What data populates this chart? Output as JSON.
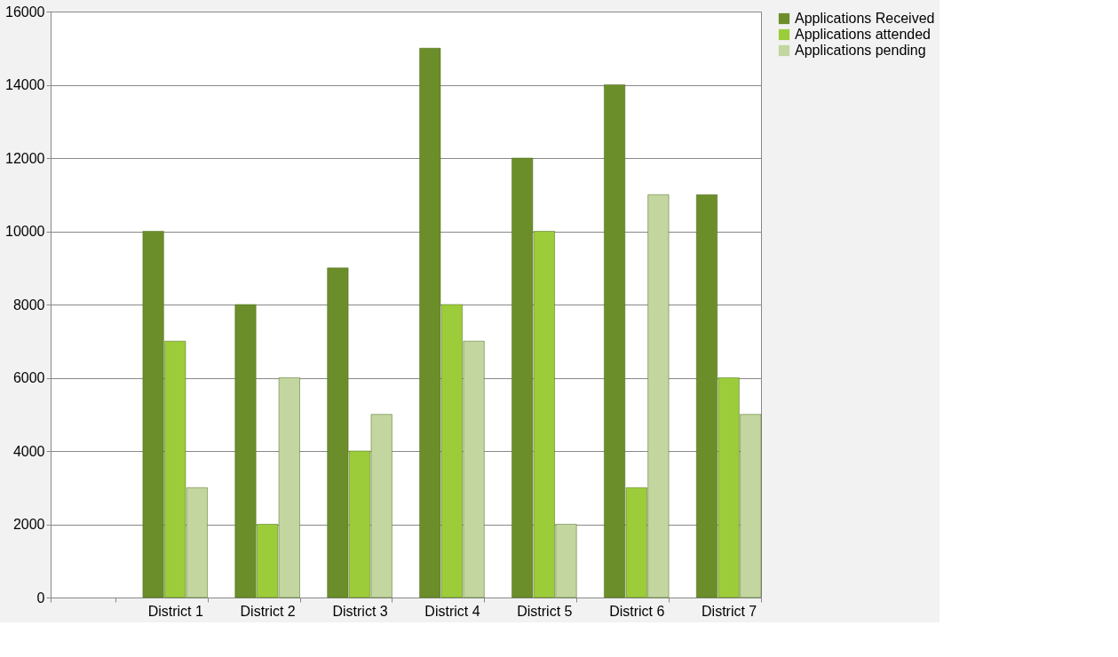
{
  "chart_data": {
    "type": "bar",
    "categories": [
      null,
      "District 1",
      "District 2",
      "District 3",
      "District 4",
      "District 5",
      "District 6",
      "District 7"
    ],
    "series": [
      {
        "name": "Applications Received",
        "color": "#6b8e2a",
        "values": [
          null,
          10000,
          8000,
          9000,
          15000,
          12000,
          14000,
          11000
        ]
      },
      {
        "name": "Applications attended",
        "color": "#9ccc3a",
        "values": [
          null,
          7000,
          2000,
          4000,
          8000,
          10000,
          3000,
          6000
        ]
      },
      {
        "name": "Applications pending",
        "color": "#c3d6a0",
        "values": [
          null,
          3000,
          6000,
          5000,
          7000,
          2000,
          11000,
          5000
        ]
      }
    ],
    "ylim": [
      0,
      16000
    ],
    "yticks": [
      0,
      2000,
      4000,
      6000,
      8000,
      10000,
      12000,
      14000,
      16000
    ],
    "grid": "y",
    "legend": "right"
  }
}
